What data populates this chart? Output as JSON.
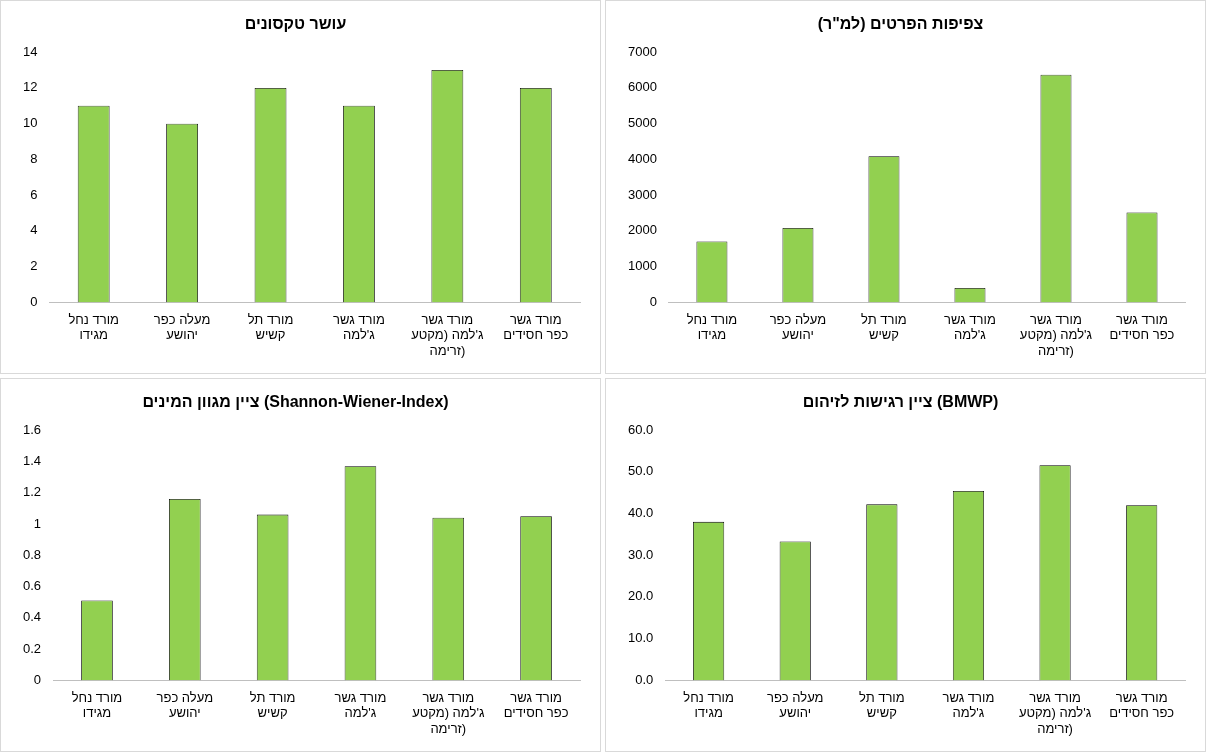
{
  "chart_data": [
    {
      "type": "bar",
      "title": "עושר טקסונים",
      "categories": [
        "מורד נחל מגידו",
        "מעלה כפר יהושע",
        "מורד תל קשיש",
        "מורד גשר ג'למה",
        "מורד גשר ג'למה (מקטע זרימה)",
        "מורד גשר כפר חסידים"
      ],
      "values": [
        11,
        10,
        12,
        11,
        13,
        12
      ],
      "color": "#92d050",
      "ylim": [
        0,
        14
      ],
      "yticks": [
        0,
        2,
        4,
        6,
        8,
        10,
        12,
        14
      ],
      "grid": false,
      "legend": false
    },
    {
      "type": "bar",
      "title": "צפיפות הפרטים (למ\"ר)",
      "categories": [
        "מורד נחל מגידו",
        "מעלה כפר יהושע",
        "מורד תל קשיש",
        "מורד גשר ג'למה",
        "מורד גשר ג'למה (מקטע זרימה)",
        "מורד גשר כפר חסידים"
      ],
      "values": [
        1700,
        2080,
        4090,
        400,
        6370,
        2510
      ],
      "color": "#92d050",
      "ylim": [
        0,
        7000
      ],
      "yticks": [
        0,
        1000,
        2000,
        3000,
        4000,
        5000,
        6000,
        7000
      ],
      "grid": false,
      "legend": false
    },
    {
      "type": "bar",
      "title": "ציין מגוון המינים (Shannon-Wiener-Index)",
      "categories": [
        "מורד נחל מגידו",
        "מעלה כפר יהושע",
        "מורד תל קשיש",
        "מורד גשר ג'למה",
        "מורד גשר ג'למה (מקטע זרימה)",
        "מורד גשר כפר חסידים"
      ],
      "values": [
        0.51,
        1.16,
        1.06,
        1.37,
        1.04,
        1.05
      ],
      "color": "#92d050",
      "ylim": [
        0,
        1.6
      ],
      "yticks": [
        0,
        0.2,
        0.4,
        0.6,
        0.8,
        1,
        1.2,
        1.4,
        1.6
      ],
      "grid": false,
      "legend": false
    },
    {
      "type": "bar",
      "title": "ציין רגישות לזיהום (BMWP)",
      "categories": [
        "מורד נחל מגידו",
        "מעלה כפר יהושע",
        "מורד תל קשיש",
        "מורד גשר ג'למה",
        "מורד גשר ג'למה (מקטע זרימה)",
        "מורד גשר כפר חסידים"
      ],
      "values": [
        38.0,
        33.3,
        42.2,
        45.4,
        51.6,
        42.0
      ],
      "color": "#92d050",
      "ylim": [
        0,
        60
      ],
      "yticks": [
        {
          "value": 0,
          "label": "0.0"
        },
        {
          "value": 10,
          "label": "10.0"
        },
        {
          "value": 20,
          "label": "20.0"
        },
        {
          "value": 30,
          "label": "30.0"
        },
        {
          "value": 40,
          "label": "40.0"
        },
        {
          "value": 50,
          "label": "50.0"
        },
        {
          "value": 60,
          "label": "60.0"
        }
      ],
      "grid": false,
      "legend": false
    }
  ]
}
